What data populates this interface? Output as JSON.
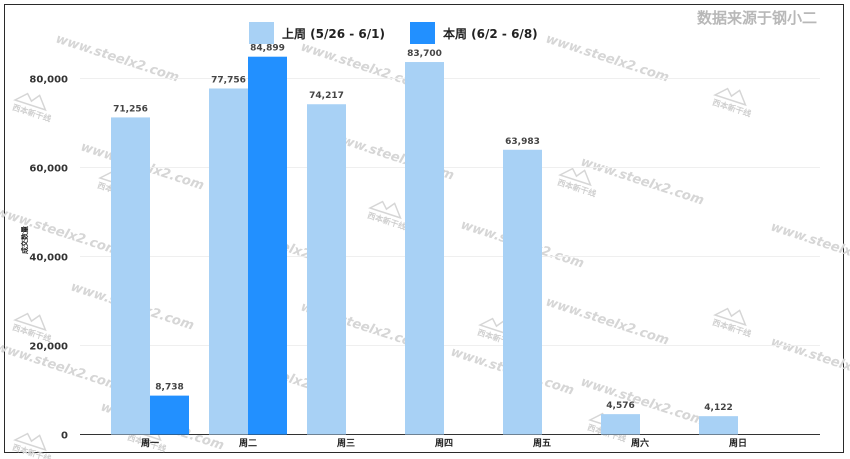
{
  "brand_text": "数据来源于钢小二",
  "watermark": {
    "url_text": "www.steelx2.com",
    "logo_text": "西本新干线"
  },
  "colors": {
    "last_week": "#a8d1f5",
    "this_week": "#2290ff",
    "grid": "#efefef",
    "axis": "#333333"
  },
  "chart_data": {
    "type": "bar",
    "categories": [
      "周一",
      "周二",
      "周三",
      "周四",
      "周五",
      "周六",
      "周日"
    ],
    "series": [
      {
        "name": "上周 (5/26 - 6/1)",
        "values": [
          71256,
          77756,
          74217,
          83700,
          63983,
          4576,
          4122
        ]
      },
      {
        "name": "本周 (6/2 - 6/8)",
        "values": [
          8738,
          84899,
          null,
          null,
          null,
          null,
          null
        ]
      }
    ],
    "data_labels": [
      [
        "71,256",
        "77,756",
        "74,217",
        "83,700",
        "63,983",
        "4,576",
        "4,122"
      ],
      [
        "8,738",
        "84,899",
        "",
        "",
        "",
        "",
        ""
      ]
    ],
    "yticks": [
      0,
      20000,
      40000,
      60000,
      80000
    ],
    "ytick_labels": [
      "0",
      "20,000",
      "40,000",
      "60,000",
      "80,000"
    ],
    "ylim": [
      0,
      90000
    ],
    "ylabel": "成交数量",
    "xlabel": "",
    "legend_position": "top-center",
    "grid": true
  }
}
